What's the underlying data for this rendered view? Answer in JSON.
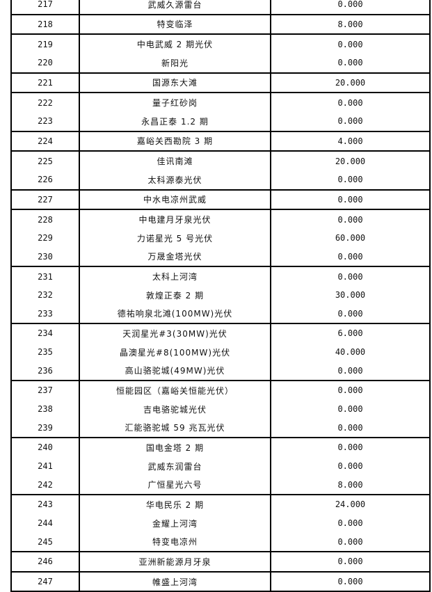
{
  "table": {
    "groups": [
      [
        {
          "no": "217",
          "name": "武威久源雷台",
          "value": "0.000"
        }
      ],
      [
        {
          "no": "218",
          "name": "特变临泽",
          "value": "8.000"
        }
      ],
      [
        {
          "no": "219",
          "name": "中电武威 2 期光伏",
          "value": "0.000"
        },
        {
          "no": "220",
          "name": "新阳光",
          "value": "0.000"
        }
      ],
      [
        {
          "no": "221",
          "name": "国源东大滩",
          "value": "20.000"
        }
      ],
      [
        {
          "no": "222",
          "name": "量子红砂岗",
          "value": "0.000"
        },
        {
          "no": "223",
          "name": "永昌正泰 1.2 期",
          "value": "0.000"
        }
      ],
      [
        {
          "no": "224",
          "name": "嘉峪关西勘院 3 期",
          "value": "4.000"
        }
      ],
      [
        {
          "no": "225",
          "name": "佳讯南滩",
          "value": "20.000"
        },
        {
          "no": "226",
          "name": "太科源泰光伏",
          "value": "0.000"
        }
      ],
      [
        {
          "no": "227",
          "name": "中水电凉州武威",
          "value": "0.000"
        }
      ],
      [
        {
          "no": "228",
          "name": "中电建月牙泉光伏",
          "value": "0.000"
        },
        {
          "no": "229",
          "name": "力诺星光 5 号光伏",
          "value": "60.000"
        },
        {
          "no": "230",
          "name": "万晟金塔光伏",
          "value": "0.000"
        }
      ],
      [
        {
          "no": "231",
          "name": "太科上河湾",
          "value": "0.000"
        },
        {
          "no": "232",
          "name": "敦煌正泰 2 期",
          "value": "30.000"
        },
        {
          "no": "233",
          "name": "德祐响泉北滩(100MW)光伏",
          "value": "0.000"
        }
      ],
      [
        {
          "no": "234",
          "name": "天润星光#3(30MW)光伏",
          "value": "6.000"
        },
        {
          "no": "235",
          "name": "晶澳星光#8(100MW)光伏",
          "value": "40.000"
        },
        {
          "no": "236",
          "name": "高山骆驼城(49MW)光伏",
          "value": "0.000"
        }
      ],
      [
        {
          "no": "237",
          "name": "恒能园区（嘉峪关恒能光伏）",
          "value": "0.000"
        },
        {
          "no": "238",
          "name": "吉电骆驼城光伏",
          "value": "0.000"
        },
        {
          "no": "239",
          "name": "汇能骆驼城 59 兆瓦光伏",
          "value": "0.000"
        }
      ],
      [
        {
          "no": "240",
          "name": "国电金塔 2 期",
          "value": "0.000"
        },
        {
          "no": "241",
          "name": "武威东润雷台",
          "value": "0.000"
        },
        {
          "no": "242",
          "name": "广恒星光六号",
          "value": "8.000"
        }
      ],
      [
        {
          "no": "243",
          "name": "华电民乐 2 期",
          "value": "24.000"
        },
        {
          "no": "244",
          "name": "金耀上河湾",
          "value": "0.000"
        },
        {
          "no": "245",
          "name": "特变电凉州",
          "value": "0.000"
        }
      ],
      [
        {
          "no": "246",
          "name": "亚洲新能源月牙泉",
          "value": "0.000"
        }
      ],
      [
        {
          "no": "247",
          "name": "帷盛上河湾",
          "value": "0.000"
        }
      ]
    ]
  }
}
